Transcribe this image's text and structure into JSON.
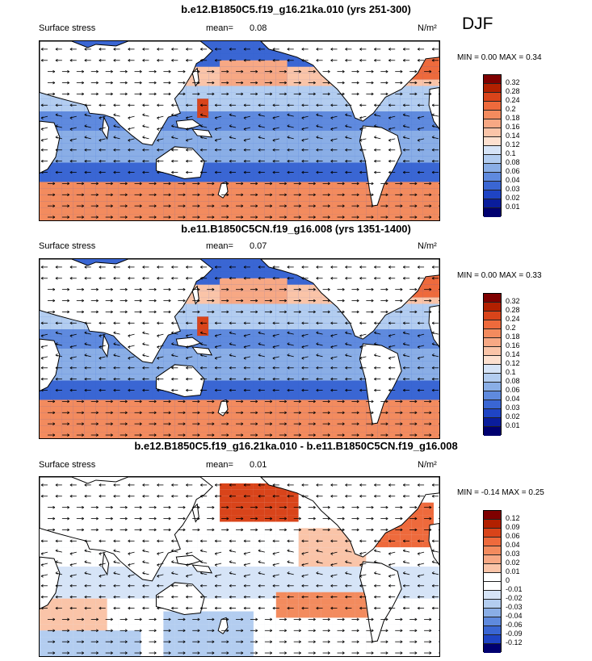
{
  "season": "DJF",
  "panels": [
    {
      "title": "b.e12.B1850C5.f19_g16.21ka.010 (yrs 251-300)",
      "variable": "Surface stress",
      "mean_label": "mean=",
      "mean": "0.08",
      "units": "N/m²",
      "min_label": "MIN =",
      "min": "0.00",
      "max_label": "MAX =",
      "max": "0.34",
      "colorbar_levels": [
        "0.32",
        "0.28",
        "0.24",
        "0.2",
        "0.18",
        "0.16",
        "0.14",
        "0.12",
        "0.1",
        "0.08",
        "0.06",
        "0.04",
        "0.03",
        "0.02",
        "0.01"
      ]
    },
    {
      "title": "b.e11.B1850C5CN.f19_g16.008 (yrs 1351-1400)",
      "variable": "Surface stress",
      "mean_label": "mean=",
      "mean": "0.07",
      "units": "N/m²",
      "min_label": "MIN =",
      "min": "0.00",
      "max_label": "MAX =",
      "max": "0.33",
      "colorbar_levels": [
        "0.32",
        "0.28",
        "0.24",
        "0.2",
        "0.18",
        "0.16",
        "0.14",
        "0.12",
        "0.1",
        "0.08",
        "0.06",
        "0.04",
        "0.03",
        "0.02",
        "0.01"
      ]
    },
    {
      "title": "b.e12.B1850C5.f19_g16.21ka.010 - b.e11.B1850C5CN.f19_g16.008",
      "variable": "Surface stress",
      "mean_label": "mean=",
      "mean": "0.01",
      "units": "N/m²",
      "min_label": "MIN =",
      "min": "-0.14",
      "max_label": "MAX =",
      "max": "0.25",
      "colorbar_levels": [
        "0.12",
        "0.09",
        "0.06",
        "0.04",
        "0.03",
        "0.02",
        "0.01",
        "0",
        "-0.01",
        "-0.02",
        "-0.03",
        "-0.04",
        "-0.06",
        "-0.09",
        "-0.12"
      ]
    }
  ],
  "colors": {
    "seq": [
      "#7f0000",
      "#b22000",
      "#d9441a",
      "#ee6a3c",
      "#f38b5e",
      "#f7a884",
      "#fac4a8",
      "#fde0cf",
      "#d6e4f7",
      "#b3cdf0",
      "#8aaee6",
      "#5f8ade",
      "#3a66d3",
      "#1f44c4",
      "#0a1d9c",
      "#000070"
    ],
    "div": [
      "#7f0000",
      "#b22000",
      "#d9441a",
      "#ee6a3c",
      "#f38b5e",
      "#f7a884",
      "#fac4a8",
      "#ffffff",
      "#ffffff",
      "#d6e4f7",
      "#b3cdf0",
      "#8aaee6",
      "#5f8ade",
      "#3a66d3",
      "#1f44c4",
      "#000070"
    ],
    "ocean_seq": "#2f5fd0",
    "ocean_div": "#dfe9f7",
    "land": "#ffffff"
  }
}
